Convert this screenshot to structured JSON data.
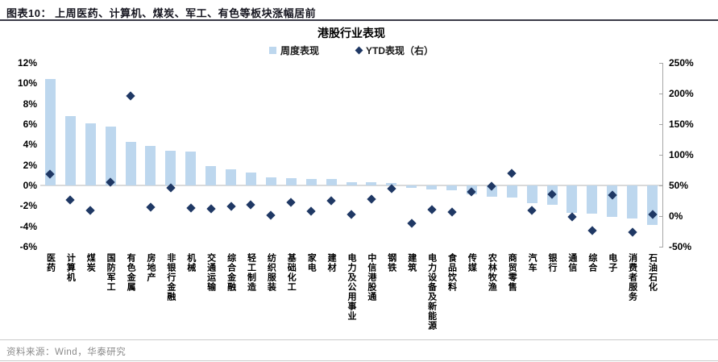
{
  "header": {
    "title": "图表10：  上周医药、计算机、煤炭、军工、有色等板块涨幅居前"
  },
  "chart_data": {
    "type": "bar",
    "title": "港股行业表现",
    "legend_position": "top",
    "grid": false,
    "categories": [
      "医药",
      "计算机",
      "煤炭",
      "国防军工",
      "有色金属",
      "房地产",
      "非银行金融",
      "机械",
      "交通运输",
      "综合金融",
      "轻工制造",
      "纺织服装",
      "基础化工",
      "家电",
      "建材",
      "电力及公用事业",
      "中信港股通",
      "钢铁",
      "建筑",
      "电力设备及新能源",
      "食品饮料",
      "传媒",
      "农林牧渔",
      "商贸零售",
      "汽车",
      "银行",
      "通信",
      "综合",
      "电子",
      "消费者服务",
      "石油石化"
    ],
    "series": [
      {
        "name": "周度表现",
        "type": "bar",
        "axis": "left",
        "unit": "%",
        "values": [
          10.4,
          6.8,
          6.1,
          5.8,
          4.3,
          3.9,
          3.4,
          3.3,
          1.9,
          1.6,
          1.3,
          0.8,
          0.7,
          0.6,
          0.6,
          0.3,
          0.3,
          0.2,
          -0.2,
          -0.4,
          -0.5,
          -0.9,
          -1.1,
          -1.2,
          -1.7,
          -1.9,
          -2.7,
          -2.8,
          -3.1,
          -3.2,
          -3.9
        ]
      },
      {
        "name": "YTD表现（右）",
        "type": "scatter",
        "marker": "diamond",
        "axis": "right",
        "unit": "%",
        "values": [
          68,
          26,
          9,
          55,
          196,
          15,
          46,
          13,
          12,
          16,
          18,
          1,
          23,
          8,
          25,
          2,
          28,
          45,
          -12,
          10,
          7,
          39,
          49,
          70,
          9,
          35,
          -1,
          -24,
          34,
          -26,
          3
        ]
      }
    ],
    "left_axis": {
      "ylim": [
        -6,
        12
      ],
      "tick_values": [
        12,
        10,
        8,
        6,
        4,
        2,
        0,
        -2,
        -4,
        -6
      ],
      "tick_labels": [
        "12%",
        "10%",
        "8%",
        "6%",
        "4%",
        "2%",
        "0%",
        "-2%",
        "-4%",
        "-6%"
      ]
    },
    "right_axis": {
      "ylim": [
        -50,
        250
      ],
      "tick_values": [
        250,
        200,
        150,
        100,
        50,
        0,
        -50
      ],
      "tick_labels": [
        "250%",
        "200%",
        "150%",
        "100%",
        "50%",
        "0%",
        "-50%"
      ]
    },
    "colors": {
      "bar": "#bdd7ee",
      "diamond": "#1f3864",
      "zero_line": "#d9d9d9",
      "axis_line": "#a6a6a6"
    }
  },
  "footer": {
    "source": "资料来源：Wind，华泰研究"
  }
}
